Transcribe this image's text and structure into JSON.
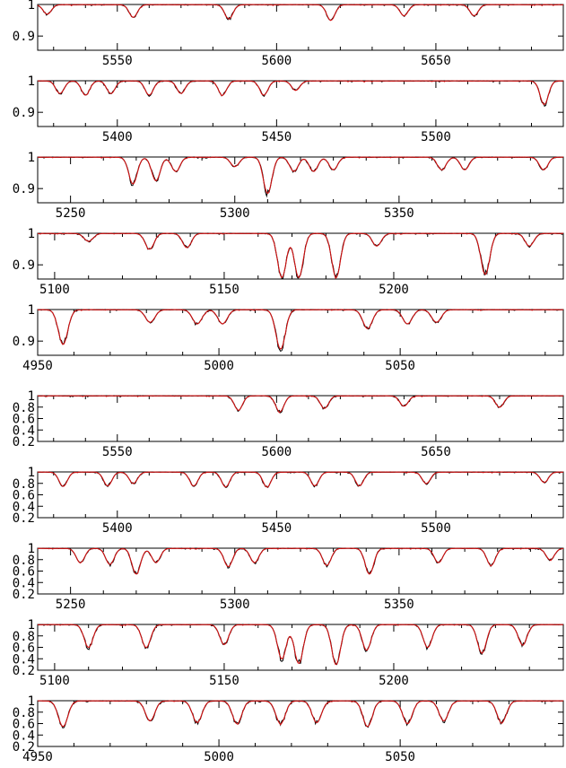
{
  "colors": {
    "observed": "#000000",
    "model": "#d01010",
    "axis": "#000000"
  },
  "chart_data": [
    {
      "type": "line",
      "panel": 1,
      "xlim": [
        5525,
        5690
      ],
      "ylim": [
        0.855,
        1.0
      ],
      "xticks": [
        5550,
        5600,
        5650
      ],
      "xtick_labels": [
        "5550",
        "5600",
        "5650"
      ],
      "yticks": [
        0.9,
        1.0
      ],
      "ytick_labels": [
        "0.9",
        "1"
      ],
      "lines": [
        [
          5528,
          0.97
        ],
        [
          5555,
          0.96
        ],
        [
          5585,
          0.955
        ],
        [
          5617,
          0.95
        ],
        [
          5640,
          0.965
        ],
        [
          5662,
          0.965
        ]
      ]
    },
    {
      "type": "line",
      "panel": 2,
      "xlim": [
        5375,
        5540
      ],
      "ylim": [
        0.855,
        1.0
      ],
      "xticks": [
        5400,
        5450,
        5500
      ],
      "xtick_labels": [
        "5400",
        "5450",
        "5500"
      ],
      "yticks": [
        0.9,
        1.0
      ],
      "ytick_labels": [
        "0.9",
        "1"
      ],
      "lines": [
        [
          5382,
          0.96
        ],
        [
          5390,
          0.955
        ],
        [
          5398,
          0.96
        ],
        [
          5410,
          0.955
        ],
        [
          5420,
          0.96
        ],
        [
          5433,
          0.955
        ],
        [
          5446,
          0.955
        ],
        [
          5456,
          0.97
        ],
        [
          5534,
          0.925
        ]
      ]
    },
    {
      "type": "line",
      "panel": 3,
      "xlim": [
        5240,
        5400
      ],
      "ylim": [
        0.855,
        1.0
      ],
      "xticks": [
        5250,
        5300,
        5350
      ],
      "xtick_labels": [
        "5250",
        "5300",
        "5350"
      ],
      "yticks": [
        0.9,
        1.0
      ],
      "ytick_labels": [
        "0.9",
        "1"
      ],
      "lines": [
        [
          5269,
          0.915
        ],
        [
          5276,
          0.925
        ],
        [
          5282,
          0.955
        ],
        [
          5300,
          0.97
        ],
        [
          5310,
          0.885
        ],
        [
          5318,
          0.955
        ],
        [
          5324,
          0.955
        ],
        [
          5330,
          0.96
        ],
        [
          5363,
          0.96
        ],
        [
          5370,
          0.96
        ],
        [
          5394,
          0.96
        ]
      ]
    },
    {
      "type": "line",
      "panel": 4,
      "xlim": [
        5095,
        5250
      ],
      "ylim": [
        0.855,
        1.0
      ],
      "xticks": [
        5100,
        5150,
        5200
      ],
      "xtick_labels": [
        "5100",
        "5150",
        "5200"
      ],
      "yticks": [
        0.9,
        1.0
      ],
      "ytick_labels": [
        "0.9",
        "1"
      ],
      "lines": [
        [
          5110,
          0.975
        ],
        [
          5128,
          0.95
        ],
        [
          5139,
          0.955
        ],
        [
          5167,
          0.86
        ],
        [
          5172,
          0.86
        ],
        [
          5183,
          0.86
        ],
        [
          5195,
          0.96
        ],
        [
          5227,
          0.87
        ],
        [
          5240,
          0.96
        ]
      ]
    },
    {
      "type": "line",
      "panel": 5,
      "xlim": [
        4950,
        5095
      ],
      "ylim": [
        0.855,
        1.0
      ],
      "xticks": [
        4950,
        5000,
        5050
      ],
      "xtick_labels": [
        "4950",
        "5000",
        "5050"
      ],
      "yticks": [
        0.9,
        1.0
      ],
      "ytick_labels": [
        "0.9",
        "1"
      ],
      "lines": [
        [
          4957,
          0.89
        ],
        [
          4981,
          0.96
        ],
        [
          4994,
          0.955
        ],
        [
          5001,
          0.955
        ],
        [
          5017,
          0.875
        ],
        [
          5041,
          0.94
        ],
        [
          5052,
          0.955
        ],
        [
          5060,
          0.96
        ]
      ]
    },
    {
      "type": "line",
      "panel": 6,
      "xlim": [
        5525,
        5690
      ],
      "ylim": [
        0.2,
        1.0
      ],
      "xticks": [
        5550,
        5600,
        5650
      ],
      "xtick_labels": [
        "5550",
        "5600",
        "5650"
      ],
      "yticks": [
        0.2,
        0.4,
        0.6,
        0.8,
        1.0
      ],
      "ytick_labels": [
        "0.2",
        "0.4",
        "0.6",
        "0.8",
        "1"
      ],
      "lines": [
        [
          5588,
          0.75
        ],
        [
          5601,
          0.72
        ],
        [
          5615,
          0.78
        ],
        [
          5640,
          0.82
        ],
        [
          5670,
          0.8
        ]
      ]
    },
    {
      "type": "line",
      "panel": 7,
      "xlim": [
        5375,
        5540
      ],
      "ylim": [
        0.2,
        1.0
      ],
      "xticks": [
        5400,
        5450,
        5500
      ],
      "xtick_labels": [
        "5400",
        "5450",
        "5500"
      ],
      "yticks": [
        0.2,
        0.4,
        0.6,
        0.8,
        1.0
      ],
      "ytick_labels": [
        "0.2",
        "0.4",
        "0.6",
        "0.8",
        "1"
      ],
      "lines": [
        [
          5383,
          0.75
        ],
        [
          5397,
          0.76
        ],
        [
          5405,
          0.8
        ],
        [
          5424,
          0.76
        ],
        [
          5434,
          0.74
        ],
        [
          5447,
          0.74
        ],
        [
          5462,
          0.76
        ],
        [
          5476,
          0.76
        ],
        [
          5497,
          0.8
        ],
        [
          5534,
          0.82
        ]
      ]
    },
    {
      "type": "line",
      "panel": 8,
      "xlim": [
        5240,
        5400
      ],
      "ylim": [
        0.2,
        1.0
      ],
      "xticks": [
        5250,
        5300,
        5350
      ],
      "xtick_labels": [
        "5250",
        "5300",
        "5350"
      ],
      "yticks": [
        0.2,
        0.4,
        0.6,
        0.8,
        1.0
      ],
      "ytick_labels": [
        "0.2",
        "0.4",
        "0.6",
        "0.8",
        "1"
      ],
      "lines": [
        [
          5253,
          0.75
        ],
        [
          5262,
          0.72
        ],
        [
          5270,
          0.55
        ],
        [
          5276,
          0.75
        ],
        [
          5298,
          0.68
        ],
        [
          5306,
          0.75
        ],
        [
          5328,
          0.7
        ],
        [
          5341,
          0.55
        ],
        [
          5362,
          0.75
        ],
        [
          5378,
          0.7
        ],
        [
          5396,
          0.8
        ]
      ]
    },
    {
      "type": "line",
      "panel": 9,
      "xlim": [
        5095,
        5250
      ],
      "ylim": [
        0.2,
        1.0
      ],
      "xticks": [
        5100,
        5150,
        5200
      ],
      "xtick_labels": [
        "5100",
        "5150",
        "5200"
      ],
      "yticks": [
        0.2,
        0.4,
        0.6,
        0.8,
        1.0
      ],
      "ytick_labels": [
        "0.2",
        "0.4",
        "0.6",
        "0.8",
        "1"
      ],
      "lines": [
        [
          5110,
          0.6
        ],
        [
          5127,
          0.6
        ],
        [
          5150,
          0.65
        ],
        [
          5167,
          0.4
        ],
        [
          5172,
          0.32
        ],
        [
          5183,
          0.3
        ],
        [
          5192,
          0.55
        ],
        [
          5210,
          0.6
        ],
        [
          5226,
          0.5
        ],
        [
          5238,
          0.65
        ]
      ]
    },
    {
      "type": "line",
      "panel": 10,
      "xlim": [
        4950,
        5095
      ],
      "ylim": [
        0.2,
        1.0
      ],
      "xticks": [
        4950,
        5000,
        5050
      ],
      "xtick_labels": [
        "4950",
        "5000",
        "5050"
      ],
      "yticks": [
        0.2,
        0.4,
        0.6,
        0.8,
        1.0
      ],
      "ytick_labels": [
        "0.2",
        "0.4",
        "0.6",
        "0.8",
        "1"
      ],
      "lines": [
        [
          4957,
          0.55
        ],
        [
          4981,
          0.65
        ],
        [
          4994,
          0.62
        ],
        [
          5005,
          0.6
        ],
        [
          5017,
          0.6
        ],
        [
          5027,
          0.62
        ],
        [
          5041,
          0.55
        ],
        [
          5052,
          0.6
        ],
        [
          5062,
          0.65
        ],
        [
          5078,
          0.62
        ]
      ]
    }
  ]
}
